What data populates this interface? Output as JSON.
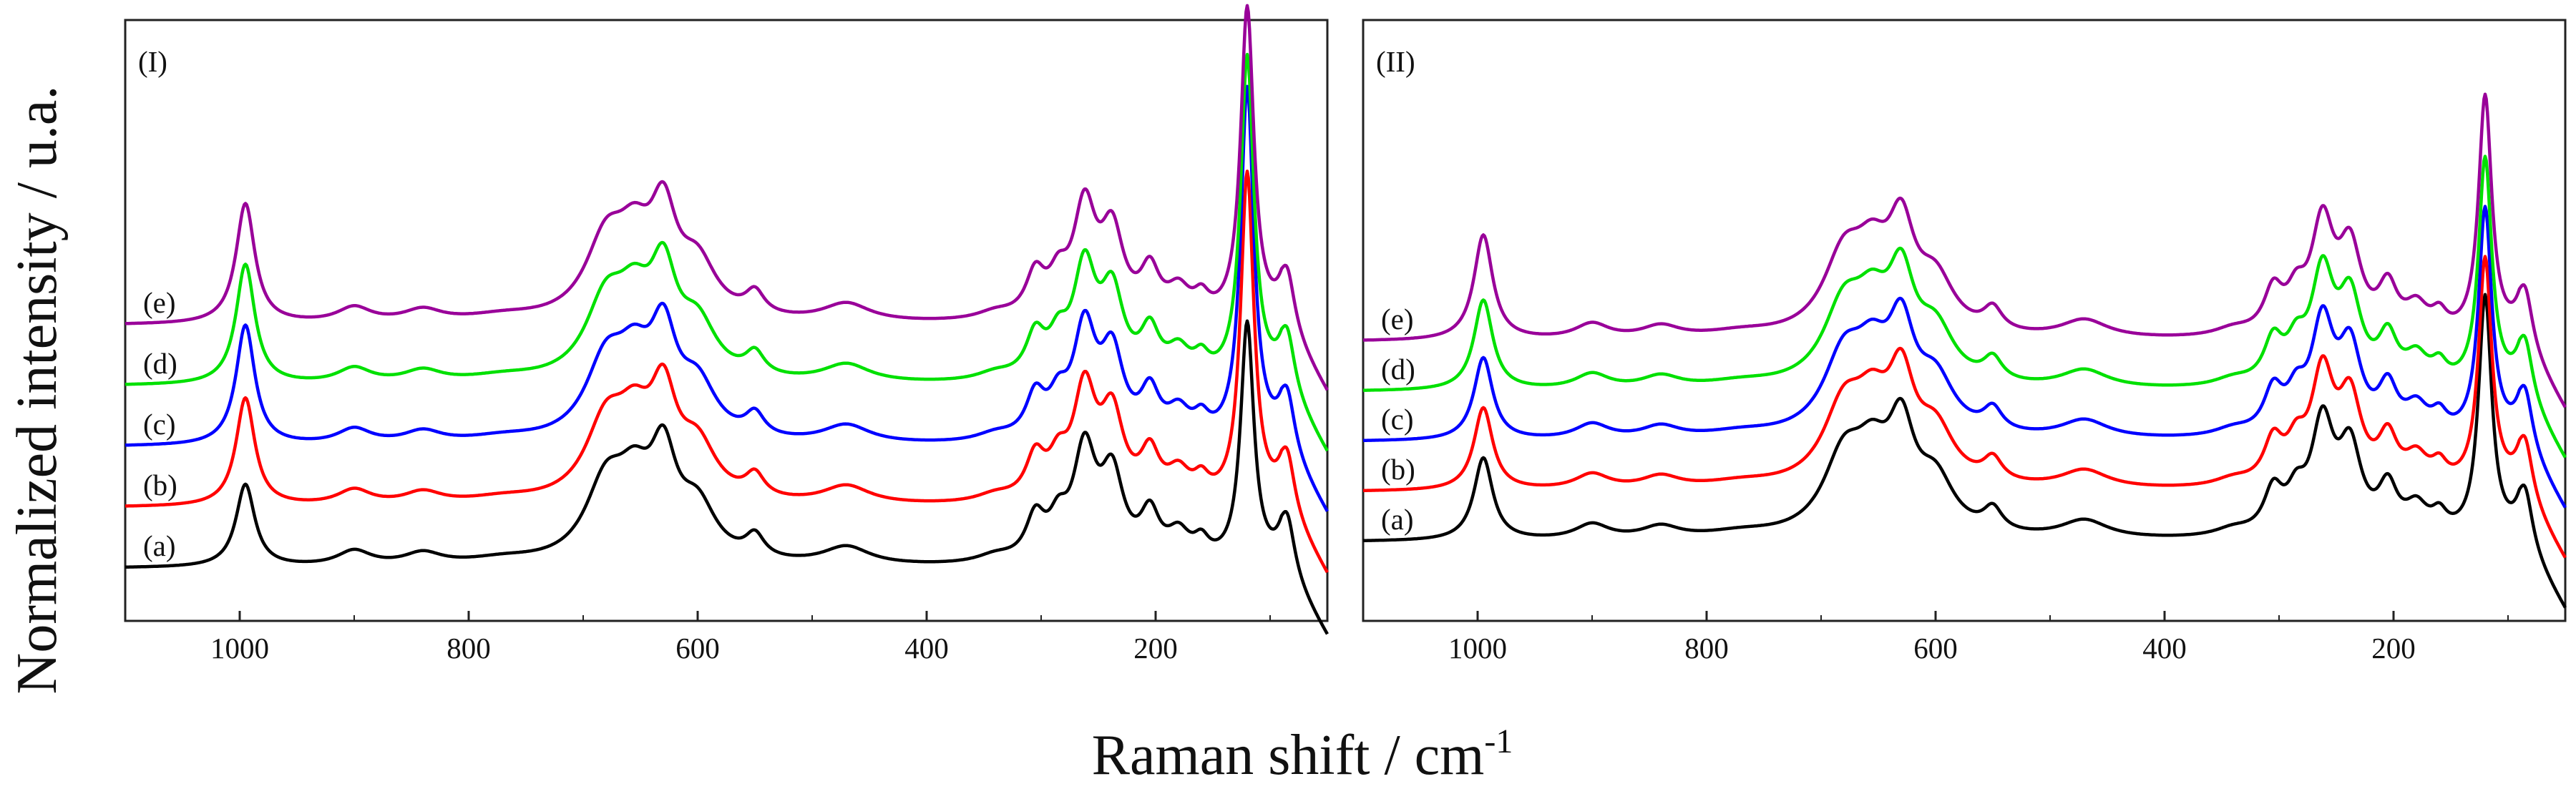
{
  "chart_data": {
    "type": "line",
    "xlabel": "Raman shift / cm",
    "xlabel_superscript": "-1",
    "ylabel": "Normalized intensity / u.a.",
    "xlim": [
      1100,
      50
    ],
    "xticks": [
      1000,
      800,
      600,
      400,
      200
    ],
    "xtick_labels": [
      "1000",
      "800",
      "600",
      "400",
      "200"
    ],
    "grid": false,
    "panels": [
      {
        "panel_label": "(I)",
        "series": [
          {
            "name": "(a)",
            "color": "#000000",
            "offset": 0,
            "peak_scale": {
              "p1000": 0.55,
              "p120": 1.0
            }
          },
          {
            "name": "(b)",
            "color": "#ff0000",
            "offset": 85,
            "peak_scale": {
              "p1000": 0.72,
              "p120": 1.37
            }
          },
          {
            "name": "(c)",
            "color": "#0000ff",
            "offset": 170,
            "peak_scale": {
              "p1000": 0.8,
              "p120": 1.47
            }
          },
          {
            "name": "(d)",
            "color": "#00e000",
            "offset": 255,
            "peak_scale": {
              "p1000": 0.8,
              "p120": 1.35
            }
          },
          {
            "name": "(e)",
            "color": "#990099",
            "offset": 340,
            "peak_scale": {
              "p1000": 0.8,
              "p120": 1.3
            }
          }
        ]
      },
      {
        "panel_label": "(II)",
        "series": [
          {
            "name": "(a)",
            "color": "#000000",
            "offset": 0,
            "peak_scale": {
              "p1000": 0.55,
              "p120": 1.0
            }
          },
          {
            "name": "(b)",
            "color": "#ff0000",
            "offset": 70,
            "peak_scale": {
              "p1000": 0.55,
              "p120": 0.95
            }
          },
          {
            "name": "(c)",
            "color": "#0000ff",
            "offset": 140,
            "peak_scale": {
              "p1000": 0.55,
              "p120": 0.95
            }
          },
          {
            "name": "(d)",
            "color": "#00e000",
            "offset": 210,
            "peak_scale": {
              "p1000": 0.6,
              "p120": 0.95
            }
          },
          {
            "name": "(e)",
            "color": "#990099",
            "offset": 280,
            "peak_scale": {
              "p1000": 0.7,
              "p120": 1.0
            }
          }
        ]
      }
    ],
    "peaks_cm-1": [
      {
        "center": 995,
        "width": 10,
        "height": 1.0,
        "key": "p1000"
      },
      {
        "center": 900,
        "width": 18,
        "height": 0.1
      },
      {
        "center": 840,
        "width": 20,
        "height": 0.08
      },
      {
        "center": 770,
        "width": 40,
        "height": 0.04
      },
      {
        "center": 680,
        "width": 22,
        "height": 0.5
      },
      {
        "center": 655,
        "width": 18,
        "height": 0.4
      },
      {
        "center": 630,
        "width": 14,
        "height": 0.62
      },
      {
        "center": 600,
        "width": 20,
        "height": 0.34
      },
      {
        "center": 550,
        "width": 10,
        "height": 0.15
      },
      {
        "center": 470,
        "width": 25,
        "height": 0.12
      },
      {
        "center": 340,
        "width": 20,
        "height": 0.05
      },
      {
        "center": 305,
        "width": 10,
        "height": 0.28
      },
      {
        "center": 285,
        "width": 10,
        "height": 0.22
      },
      {
        "center": 262,
        "width": 12,
        "height": 0.72
      },
      {
        "center": 238,
        "width": 12,
        "height": 0.55
      },
      {
        "center": 205,
        "width": 10,
        "height": 0.3
      },
      {
        "center": 180,
        "width": 12,
        "height": 0.18
      },
      {
        "center": 160,
        "width": 8,
        "height": 0.12
      },
      {
        "center": 120,
        "width": 7,
        "height": 1.0,
        "key": "p120"
      },
      {
        "center": 85,
        "width": 8,
        "height": 0.35
      }
    ]
  }
}
